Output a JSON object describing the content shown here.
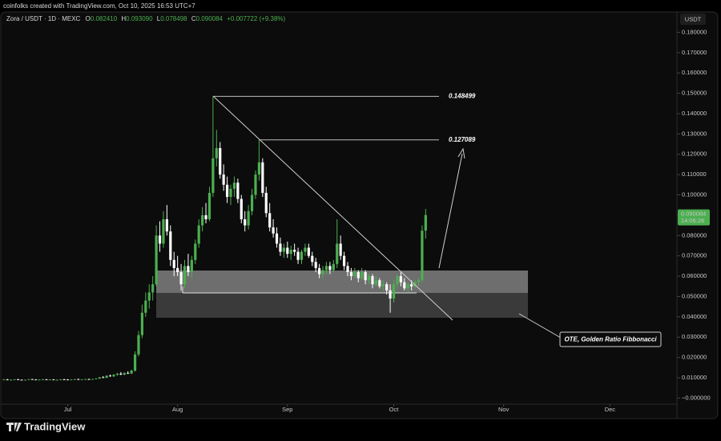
{
  "header": {
    "credit": "coinfolks created with TradingView.com, Oct 10, 2025 16:53 UTC+7",
    "symbol": "Zora / USDT · 1D · MEXC",
    "ohlc": [
      {
        "label": "O",
        "value": "0.082410"
      },
      {
        "label": "H",
        "value": "0.093090"
      },
      {
        "label": "L",
        "value": "0.078498"
      },
      {
        "label": "C",
        "value": "0.090084"
      }
    ],
    "change": "+0.007722 (+9.38%)"
  },
  "footer": {
    "brand": "TradingView"
  },
  "chart_data": {
    "type": "candlestick",
    "currency": "USDT",
    "up_color": "#4caf50",
    "down_color": "#ffffff",
    "annotation": "OTE, Golden Ratio Fibbonacci",
    "levels": [
      {
        "value": 0.148499,
        "label": "0.148499"
      },
      {
        "value": 0.127089,
        "label": "0.127089"
      }
    ],
    "price_tag": {
      "label": "0.090084",
      "countdown": "14:06:28"
    },
    "xlim": [
      -1.1,
      189.9
    ],
    "xticks": [
      {
        "value": 18,
        "label": "Jul"
      },
      {
        "value": 49,
        "label": "Aug"
      },
      {
        "value": 80,
        "label": "Sep"
      },
      {
        "value": 110,
        "label": "Oct"
      },
      {
        "value": 141,
        "label": "Nov"
      },
      {
        "value": 171,
        "label": "Dec"
      }
    ],
    "ylim": [
      -0.003,
      0.19
    ],
    "yticks": [
      {
        "value": 0.18,
        "label": "0.180000"
      },
      {
        "value": 0.17,
        "label": "0.170000"
      },
      {
        "value": 0.16,
        "label": "0.160000"
      },
      {
        "value": 0.15,
        "label": "0.150000"
      },
      {
        "value": 0.14,
        "label": "0.140000"
      },
      {
        "value": 0.13,
        "label": "0.130000"
      },
      {
        "value": 0.12,
        "label": "0.120000"
      },
      {
        "value": 0.11,
        "label": "0.110000"
      },
      {
        "value": 0.1,
        "label": "0.100000"
      },
      {
        "value": 0.09,
        "label": "0.090000"
      },
      {
        "value": 0.08,
        "label": "0.080000"
      },
      {
        "value": 0.07,
        "label": "0.070000"
      },
      {
        "value": 0.06,
        "label": "0.060000"
      },
      {
        "value": 0.05,
        "label": "0.050000"
      },
      {
        "value": 0.04,
        "label": "0.040000"
      },
      {
        "value": 0.03,
        "label": "0.030000"
      },
      {
        "value": 0.02,
        "label": "0.020000"
      },
      {
        "value": 0.01,
        "label": "0.010000"
      },
      {
        "value": 0,
        "label": "−0.000000"
      }
    ],
    "ohlc": [
      [
        0.009,
        0.0093,
        0.0088,
        0.0091
      ],
      [
        0.0091,
        0.0094,
        0.0089,
        0.0089
      ],
      [
        0.0089,
        0.0092,
        0.0087,
        0.009
      ],
      [
        0.009,
        0.0093,
        0.0088,
        0.0092
      ],
      [
        0.0092,
        0.0095,
        0.0089,
        0.009
      ],
      [
        0.009,
        0.0092,
        0.0087,
        0.0088
      ],
      [
        0.0088,
        0.0091,
        0.0086,
        0.009
      ],
      [
        0.009,
        0.0094,
        0.0089,
        0.0093
      ],
      [
        0.0093,
        0.0095,
        0.009,
        0.0091
      ],
      [
        0.0091,
        0.0093,
        0.0088,
        0.0089
      ],
      [
        0.0089,
        0.0092,
        0.0087,
        0.0091
      ],
      [
        0.0091,
        0.0094,
        0.0089,
        0.0092
      ],
      [
        0.0092,
        0.0094,
        0.0089,
        0.009
      ],
      [
        0.009,
        0.0093,
        0.0088,
        0.0091
      ],
      [
        0.0091,
        0.0093,
        0.0088,
        0.0089
      ],
      [
        0.0089,
        0.0092,
        0.0087,
        0.009
      ],
      [
        0.009,
        0.0093,
        0.0088,
        0.0092
      ],
      [
        0.0092,
        0.0095,
        0.009,
        0.0091
      ],
      [
        0.0091,
        0.0093,
        0.0089,
        0.009
      ],
      [
        0.009,
        0.0092,
        0.0088,
        0.0091
      ],
      [
        0.0091,
        0.0094,
        0.0089,
        0.0093
      ],
      [
        0.0093,
        0.0096,
        0.009,
        0.0091
      ],
      [
        0.0091,
        0.0093,
        0.0089,
        0.0092
      ],
      [
        0.0092,
        0.0095,
        0.009,
        0.0093
      ],
      [
        0.0093,
        0.0096,
        0.0091,
        0.0092
      ],
      [
        0.0092,
        0.0095,
        0.009,
        0.0094
      ],
      [
        0.0094,
        0.0098,
        0.0092,
        0.0096
      ],
      [
        0.0096,
        0.0104,
        0.0094,
        0.0102
      ],
      [
        0.0102,
        0.0108,
        0.0099,
        0.01
      ],
      [
        0.01,
        0.0112,
        0.0098,
        0.011
      ],
      [
        0.011,
        0.0116,
        0.0105,
        0.0107
      ],
      [
        0.0107,
        0.0118,
        0.0104,
        0.0115
      ],
      [
        0.0115,
        0.0124,
        0.011,
        0.012
      ],
      [
        0.012,
        0.0128,
        0.0113,
        0.0116
      ],
      [
        0.0116,
        0.0126,
        0.0112,
        0.0124
      ],
      [
        0.0124,
        0.0132,
        0.0118,
        0.0121
      ],
      [
        0.0121,
        0.014,
        0.0118,
        0.0135
      ],
      [
        0.0135,
        0.023,
        0.013,
        0.0215
      ],
      [
        0.0215,
        0.033,
        0.0205,
        0.031
      ],
      [
        0.031,
        0.046,
        0.0295,
        0.042
      ],
      [
        0.042,
        0.052,
        0.04,
        0.048
      ],
      [
        0.048,
        0.056,
        0.044,
        0.052
      ],
      [
        0.052,
        0.06,
        0.048,
        0.056
      ],
      [
        0.056,
        0.085,
        0.055,
        0.08
      ],
      [
        0.08,
        0.087,
        0.072,
        0.076
      ],
      [
        0.076,
        0.092,
        0.074,
        0.088
      ],
      [
        0.088,
        0.095,
        0.08,
        0.082
      ],
      [
        0.082,
        0.085,
        0.065,
        0.068
      ],
      [
        0.068,
        0.072,
        0.06,
        0.064
      ],
      [
        0.064,
        0.07,
        0.06,
        0.062
      ],
      [
        0.062,
        0.066,
        0.053,
        0.056
      ],
      [
        0.056,
        0.068,
        0.054,
        0.065
      ],
      [
        0.065,
        0.071,
        0.06,
        0.062
      ],
      [
        0.062,
        0.07,
        0.059,
        0.068
      ],
      [
        0.068,
        0.078,
        0.066,
        0.076
      ],
      [
        0.076,
        0.088,
        0.074,
        0.085
      ],
      [
        0.085,
        0.094,
        0.082,
        0.09
      ],
      [
        0.09,
        0.096,
        0.086,
        0.088
      ],
      [
        0.088,
        0.104,
        0.087,
        0.101
      ],
      [
        0.101,
        0.1485,
        0.099,
        0.118
      ],
      [
        0.118,
        0.132,
        0.114,
        0.123
      ],
      [
        0.123,
        0.126,
        0.108,
        0.11
      ],
      [
        0.11,
        0.115,
        0.102,
        0.105
      ],
      [
        0.105,
        0.109,
        0.096,
        0.099
      ],
      [
        0.099,
        0.105,
        0.095,
        0.103
      ],
      [
        0.103,
        0.109,
        0.099,
        0.106
      ],
      [
        0.106,
        0.108,
        0.096,
        0.098
      ],
      [
        0.098,
        0.1,
        0.086,
        0.088
      ],
      [
        0.088,
        0.092,
        0.082,
        0.085
      ],
      [
        0.085,
        0.095,
        0.083,
        0.092
      ],
      [
        0.092,
        0.103,
        0.09,
        0.1
      ],
      [
        0.1,
        0.112,
        0.098,
        0.11
      ],
      [
        0.11,
        0.1271,
        0.107,
        0.116
      ],
      [
        0.116,
        0.118,
        0.099,
        0.101
      ],
      [
        0.101,
        0.104,
        0.089,
        0.091
      ],
      [
        0.091,
        0.096,
        0.082,
        0.084
      ],
      [
        0.084,
        0.088,
        0.079,
        0.081
      ],
      [
        0.081,
        0.084,
        0.074,
        0.076
      ],
      [
        0.076,
        0.079,
        0.07,
        0.072
      ],
      [
        0.072,
        0.076,
        0.069,
        0.074
      ],
      [
        0.074,
        0.077,
        0.069,
        0.071
      ],
      [
        0.071,
        0.075,
        0.068,
        0.073
      ],
      [
        0.073,
        0.076,
        0.07,
        0.072
      ],
      [
        0.072,
        0.074,
        0.066,
        0.068
      ],
      [
        0.068,
        0.073,
        0.066,
        0.072
      ],
      [
        0.072,
        0.076,
        0.07,
        0.074
      ],
      [
        0.074,
        0.076,
        0.069,
        0.07
      ],
      [
        0.07,
        0.072,
        0.065,
        0.067
      ],
      [
        0.067,
        0.069,
        0.062,
        0.064
      ],
      [
        0.064,
        0.066,
        0.059,
        0.061
      ],
      [
        0.061,
        0.065,
        0.059,
        0.063
      ],
      [
        0.063,
        0.067,
        0.061,
        0.065
      ],
      [
        0.065,
        0.067,
        0.061,
        0.063
      ],
      [
        0.063,
        0.068,
        0.062,
        0.066
      ],
      [
        0.066,
        0.088,
        0.064,
        0.076
      ],
      [
        0.076,
        0.08,
        0.068,
        0.07
      ],
      [
        0.07,
        0.072,
        0.063,
        0.065
      ],
      [
        0.065,
        0.067,
        0.06,
        0.062
      ],
      [
        0.062,
        0.064,
        0.058,
        0.06
      ],
      [
        0.06,
        0.064,
        0.059,
        0.062
      ],
      [
        0.062,
        0.063,
        0.057,
        0.059
      ],
      [
        0.059,
        0.064,
        0.058,
        0.062
      ],
      [
        0.062,
        0.063,
        0.056,
        0.058
      ],
      [
        0.058,
        0.061,
        0.056,
        0.06
      ],
      [
        0.06,
        0.061,
        0.054,
        0.056
      ],
      [
        0.056,
        0.06,
        0.055,
        0.058
      ],
      [
        0.058,
        0.059,
        0.054,
        0.055
      ],
      [
        0.055,
        0.058,
        0.053,
        0.056
      ],
      [
        0.056,
        0.057,
        0.051,
        0.053
      ],
      [
        0.053,
        0.056,
        0.042,
        0.049
      ],
      [
        0.049,
        0.058,
        0.047,
        0.056
      ],
      [
        0.056,
        0.061,
        0.054,
        0.06
      ],
      [
        0.06,
        0.062,
        0.055,
        0.057
      ],
      [
        0.057,
        0.059,
        0.053,
        0.054
      ],
      [
        0.054,
        0.057,
        0.052,
        0.056
      ],
      [
        0.056,
        0.058,
        0.053,
        0.055
      ],
      [
        0.055,
        0.058,
        0.054,
        0.057
      ],
      [
        0.057,
        0.059,
        0.055,
        0.058
      ],
      [
        0.058,
        0.085,
        0.057,
        0.0824
      ],
      [
        0.08241,
        0.09309,
        0.078498,
        0.090084
      ]
    ]
  }
}
